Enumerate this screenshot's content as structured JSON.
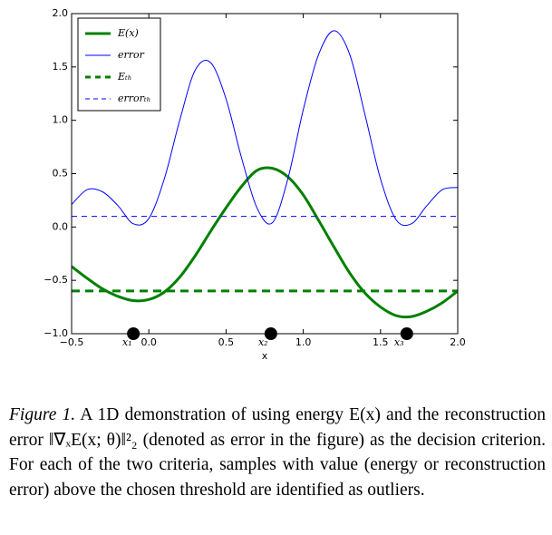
{
  "chart_data": {
    "type": "line",
    "x_label": "x",
    "x": [
      -0.5,
      -0.4,
      -0.3,
      -0.2,
      -0.1,
      0.0,
      0.1,
      0.2,
      0.3,
      0.4,
      0.5,
      0.6,
      0.7,
      0.8,
      0.9,
      1.0,
      1.1,
      1.2,
      1.3,
      1.4,
      1.5,
      1.6,
      1.7,
      1.8,
      1.9,
      2.0
    ],
    "series": [
      {
        "name": "E(x)",
        "color": "#008000",
        "width": 3,
        "values": [
          -0.37,
          -0.48,
          -0.58,
          -0.65,
          -0.69,
          -0.68,
          -0.61,
          -0.47,
          -0.27,
          -0.04,
          0.18,
          0.38,
          0.53,
          0.55,
          0.47,
          0.3,
          0.06,
          -0.19,
          -0.43,
          -0.62,
          -0.75,
          -0.83,
          -0.84,
          -0.79,
          -0.71,
          -0.6
        ]
      },
      {
        "name": "error",
        "color": "#0000ff",
        "width": 1,
        "values": [
          0.21,
          0.35,
          0.33,
          0.2,
          0.03,
          0.08,
          0.45,
          1.0,
          1.47,
          1.54,
          1.2,
          0.65,
          0.18,
          0.04,
          0.45,
          1.1,
          1.62,
          1.84,
          1.62,
          1.05,
          0.45,
          0.07,
          0.03,
          0.2,
          0.35,
          0.37
        ]
      },
      {
        "name": "Eₜₕ",
        "color": "#008000",
        "width": 3,
        "dashed": true,
        "y": -0.6
      },
      {
        "name": "errorₜₕ",
        "color": "#0000ff",
        "width": 1,
        "dashed": true,
        "y": 0.1
      }
    ],
    "points": {
      "color": "#000000",
      "x": [
        -0.1,
        0.79,
        1.67
      ],
      "y": [
        -1.0,
        -1.0,
        -1.0
      ]
    },
    "annotations": [
      {
        "text": "x₁",
        "x": -0.14
      },
      {
        "text": "x₂",
        "x": 0.74
      },
      {
        "text": "x₃",
        "x": 1.62
      }
    ],
    "xlim": [
      -0.5,
      2.0
    ],
    "ylim": [
      -1.0,
      2.0
    ],
    "xticks": [
      {
        "value": -0.5,
        "label": "−0.5"
      },
      {
        "value": 0,
        "label": "0.0"
      },
      0.5,
      {
        "value": 1,
        "label": "1.0"
      },
      1.5,
      {
        "value": 2,
        "label": "2.0"
      }
    ],
    "yticks": [
      {
        "value": 2,
        "label": "2.0"
      },
      1.5,
      {
        "value": 1,
        "label": "1.0"
      },
      0.5,
      {
        "value": 0,
        "label": "0.0"
      },
      {
        "value": -0.5,
        "label": "−0.5"
      },
      {
        "value": -1,
        "label": "−1.0"
      }
    ],
    "legend": "upper left"
  },
  "caption": {
    "label": "Figure 1.",
    "text": " A 1D demonstration of using energy E(x) and the reconstruction error ‖∇ₓE(x; θ)‖²₂ (denoted as error in the figure) as the decision criterion. For each of the two criteria, samples with value (energy or reconstruction error) above the chosen threshold are identified as outliers."
  }
}
